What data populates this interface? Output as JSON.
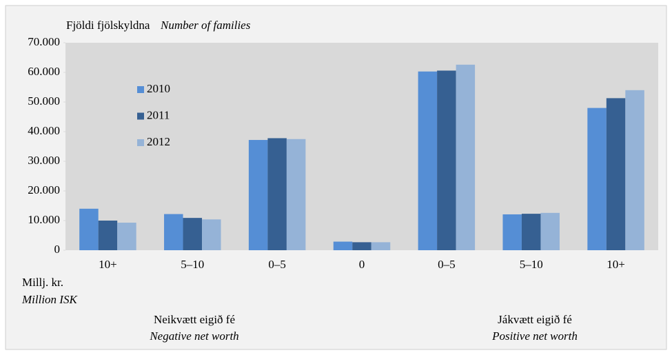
{
  "chart_data": {
    "type": "bar",
    "ylabel": "Fjöldi fjölskyldna",
    "ylabel_en": "Number of families",
    "xlabel": "Millj. kr.",
    "xlabel_en": "Million ISK",
    "groups": [
      {
        "label": "Neikvætt eigið fé",
        "label_en": "Negative net worth"
      },
      {
        "label": "Jákvætt eigið fé",
        "label_en": "Positive net worth"
      }
    ],
    "categories": [
      "10+",
      "5–10",
      "0–5",
      "0",
      "0–5",
      "5–10",
      "10+"
    ],
    "series": [
      {
        "name": "2010",
        "color": "#558ed5",
        "values": [
          14000,
          12200,
          37200,
          2900,
          60300,
          12100,
          48000
        ]
      },
      {
        "name": "2011",
        "color": "#366092",
        "values": [
          10000,
          10900,
          37800,
          2700,
          60600,
          12300,
          51300
        ]
      },
      {
        "name": "2012",
        "color": "#95b3d7",
        "values": [
          9300,
          10400,
          37500,
          2700,
          62600,
          12600,
          54000
        ]
      }
    ],
    "ylim": [
      0,
      70000
    ],
    "yticks": [
      0,
      {
        "value": 10000,
        "label": "10.000"
      },
      {
        "value": 20000,
        "label": "20.000"
      },
      {
        "value": 30000,
        "label": "30.000"
      },
      {
        "value": 40000,
        "label": "40.000"
      },
      {
        "value": 50000,
        "label": "50.000"
      },
      {
        "value": 60000,
        "label": "60.000"
      },
      {
        "value": 70000,
        "label": "70.000"
      }
    ],
    "grid": false,
    "legend": "upper left"
  }
}
